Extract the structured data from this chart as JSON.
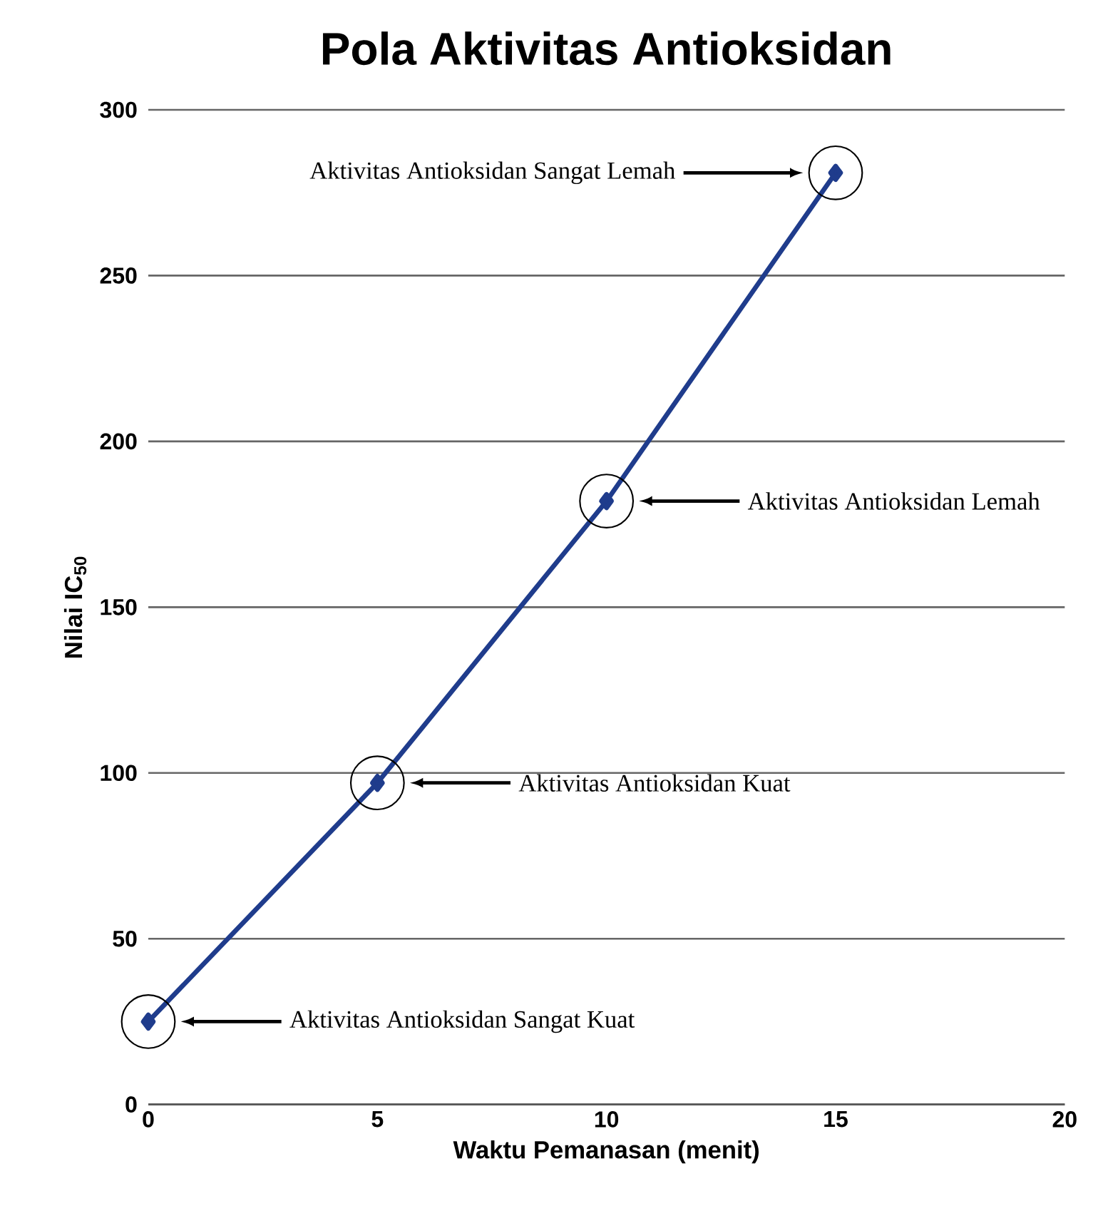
{
  "chart_data": {
    "type": "line",
    "title": "Pola Aktivitas Antioksidan",
    "xlabel": "Waktu Pemanasan (menit)",
    "ylabel": "Nilai IC$_{50}$",
    "x": [
      0,
      5,
      10,
      15
    ],
    "series": [
      {
        "color": "#1f3c8c",
        "values": [
          25,
          97,
          182,
          281
        ]
      }
    ],
    "xlim": [
      0,
      20
    ],
    "ylim": [
      0,
      300
    ],
    "xticks": [
      0,
      5,
      10,
      15,
      20
    ],
    "yticks": [
      0,
      50,
      100,
      150,
      200,
      250,
      300
    ],
    "grid": "y",
    "marker": "diamond",
    "line_style": "solid",
    "annotations": [
      "Aktivitas Antioksidan Sangat Kuat",
      "Aktivitas Antioksidan Kuat",
      "Aktivitas Antioksidan Lemah",
      "Aktivitas Antioksidan Sangat Lemah"
    ]
  }
}
